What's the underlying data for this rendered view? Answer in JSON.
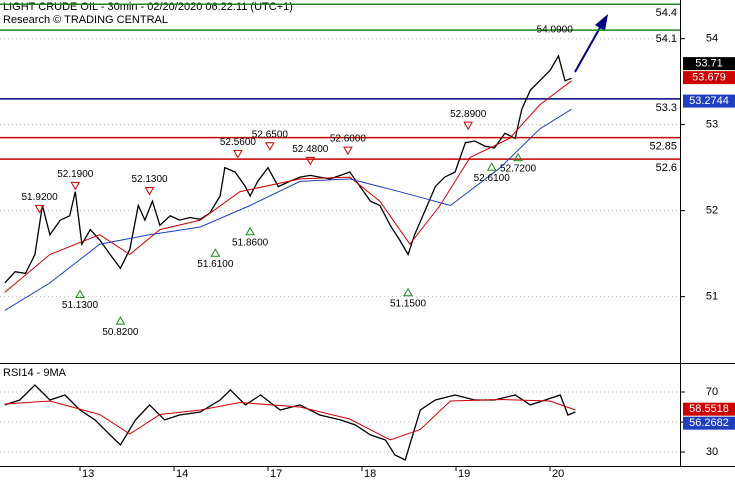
{
  "chart_data": [
    {
      "type": "line",
      "title": "LIGHT CRUDE OIL - 30min - 02/20/2020 06:22:11 (UTC+1)",
      "subtitle": "Research © TRADING CENTRAL",
      "xlim": [
        0.149,
        7.383
      ],
      "xticks": [
        {
          "value": 1,
          "label": "13"
        },
        {
          "value": 2,
          "label": "14"
        },
        {
          "value": 3,
          "label": "17"
        },
        {
          "value": 4,
          "label": "18"
        },
        {
          "value": 5,
          "label": "19"
        },
        {
          "value": 6,
          "label": "20"
        }
      ],
      "ylim": [
        50.24,
        54.45
      ],
      "yticks": [
        51,
        52,
        53,
        54
      ],
      "grid": true,
      "series": [
        {
          "color": "#000000",
          "x": [
            0.2,
            0.31,
            0.42,
            0.52,
            0.6,
            0.68,
            0.79,
            0.89,
            0.95,
            1.02,
            1.11,
            1.21,
            1.32,
            1.43,
            1.53,
            1.62,
            1.69,
            1.77,
            1.85,
            1.96,
            2.06,
            2.17,
            2.28,
            2.38,
            2.49,
            2.54,
            2.65,
            2.76,
            2.81,
            2.89,
            3.0,
            3.11,
            3.23,
            3.34,
            3.45,
            3.55,
            3.66,
            3.77,
            3.87,
            3.98,
            4.09,
            4.19,
            4.3,
            4.4,
            4.49,
            4.56,
            4.67,
            4.78,
            4.88,
            4.99,
            5.1,
            5.2,
            5.31,
            5.41,
            5.52,
            5.63,
            5.7,
            5.79,
            5.89,
            6.0,
            6.09,
            6.16,
            6.23
          ],
          "values": [
            51.16,
            51.29,
            51.27,
            51.49,
            52.06,
            51.72,
            51.89,
            51.94,
            52.22,
            51.61,
            51.78,
            51.66,
            51.49,
            51.33,
            51.55,
            52.06,
            51.89,
            52.11,
            51.83,
            51.94,
            51.89,
            51.92,
            51.9,
            51.97,
            52.17,
            52.5,
            52.45,
            52.28,
            52.17,
            52.34,
            52.5,
            52.28,
            52.34,
            52.39,
            52.41,
            52.39,
            52.37,
            52.41,
            52.45,
            52.28,
            52.11,
            52.06,
            51.83,
            51.66,
            51.49,
            51.72,
            52.0,
            52.28,
            52.39,
            52.45,
            52.79,
            52.81,
            52.75,
            52.73,
            52.9,
            52.84,
            53.18,
            53.4,
            53.51,
            53.63,
            53.8,
            53.51,
            53.54
          ]
        },
        {
          "color": "#cc0000",
          "x": [
            0.2,
            0.68,
            1.21,
            1.53,
            1.85,
            2.28,
            2.7,
            3.34,
            3.87,
            4.19,
            4.51,
            4.83,
            5.15,
            5.57,
            5.89,
            6.23
          ],
          "values": [
            51.05,
            51.49,
            51.72,
            51.49,
            51.78,
            51.89,
            52.22,
            52.37,
            52.39,
            52.11,
            51.61,
            52.06,
            52.62,
            52.84,
            53.23,
            53.51
          ]
        },
        {
          "color": "#1f3fbf",
          "x": [
            0.2,
            0.68,
            1.21,
            1.74,
            2.28,
            2.81,
            3.34,
            3.87,
            4.4,
            4.94,
            5.47,
            5.89,
            6.23
          ],
          "values": [
            50.84,
            51.16,
            51.61,
            51.72,
            51.81,
            52.06,
            52.34,
            52.37,
            52.22,
            52.06,
            52.5,
            52.95,
            53.18
          ]
        }
      ],
      "levels": {
        "values": [
          54.4,
          54.1,
          53.3,
          52.85,
          52.6
        ],
        "colors": [
          "#1a8a1a",
          "#1a8a1a",
          "#00007f",
          "#cc0000",
          "#cc0000"
        ]
      },
      "highs": {
        "color": "#cc0000",
        "x": [
          0.57,
          0.95,
          1.74,
          2.68,
          3.02,
          3.45,
          3.85,
          5.13
        ],
        "values": [
          51.92,
          52.19,
          52.13,
          52.56,
          52.65,
          52.48,
          52.6,
          52.89
        ],
        "value_labels": [
          "51.9200",
          "52.1900",
          "52.1300",
          "52.5600",
          "52.6500",
          "52.4800",
          "52.6000",
          "52.8900"
        ]
      },
      "lows": {
        "color": "#1a8a1a",
        "x": [
          1.0,
          1.43,
          2.44,
          2.81,
          4.49,
          5.38,
          5.66
        ],
        "values": [
          51.13,
          50.82,
          51.61,
          51.86,
          51.15,
          52.61,
          52.72
        ],
        "value_labels": [
          "51.1300",
          "50.8200",
          "51.6100",
          "51.8600",
          "51.1500",
          "52.6100",
          "52.7200"
        ]
      },
      "high_label": {
        "x": 6.05,
        "value": 54.09,
        "label": "54.0900"
      },
      "last_labels": [
        {
          "value": 53.71,
          "color": "#000000"
        },
        {
          "value": 53.679,
          "color": "#cc0000"
        },
        {
          "value": 53.2744,
          "color": "#1f3fbf"
        }
      ]
    },
    {
      "type": "line",
      "title": "RSI14 - 9MA",
      "ylim": [
        20.7,
        88
      ],
      "yticks": [
        30,
        50,
        70
      ],
      "series": [
        {
          "color": "#000000",
          "x": [
            0.2,
            0.36,
            0.52,
            0.68,
            0.84,
            1.0,
            1.16,
            1.32,
            1.43,
            1.59,
            1.74,
            1.9,
            2.06,
            2.28,
            2.49,
            2.6,
            2.76,
            2.92,
            3.13,
            3.34,
            3.55,
            3.77,
            3.93,
            4.09,
            4.25,
            4.35,
            4.46,
            4.62,
            4.78,
            4.99,
            5.2,
            5.41,
            5.63,
            5.79,
            5.95,
            6.11,
            6.19,
            6.27
          ],
          "values": [
            61.4,
            64.7,
            74.7,
            64.7,
            68,
            58,
            51.4,
            41.4,
            34.7,
            51.4,
            61.4,
            51.4,
            54.7,
            56.7,
            64.7,
            71.4,
            61.4,
            68,
            58,
            61.4,
            54.7,
            51.4,
            48,
            41.4,
            38,
            28,
            24.7,
            58,
            64.7,
            68,
            64.7,
            64.7,
            68,
            61.4,
            64.7,
            68,
            54.7,
            56.7
          ]
        },
        {
          "color": "#cc0000",
          "x": [
            0.2,
            0.68,
            1.21,
            1.53,
            1.85,
            2.28,
            2.7,
            3.34,
            3.87,
            4.3,
            4.62,
            4.94,
            5.47,
            6.0,
            6.27
          ],
          "values": [
            62,
            64,
            55,
            42,
            55,
            58,
            63,
            60,
            52,
            38,
            45,
            64,
            65,
            64,
            58
          ]
        }
      ],
      "last_labels": [
        {
          "value": 58.5518,
          "color": "#cc0000"
        },
        {
          "value": 56.2682,
          "color": "#1f3fbf"
        }
      ]
    }
  ]
}
